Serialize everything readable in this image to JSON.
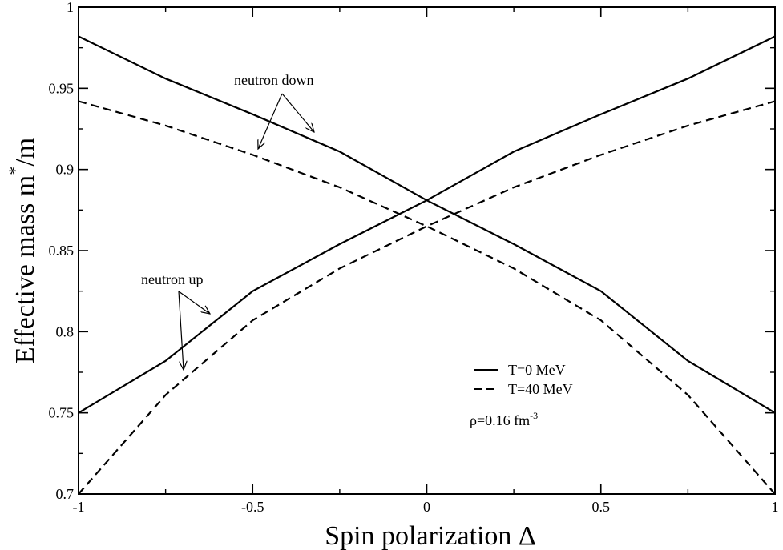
{
  "chart_data": {
    "type": "line",
    "xlabel": "Spin polarization Δ",
    "ylabel_main": "Effective mass m",
    "ylabel_sup": "*",
    "ylabel_tail": "/m",
    "xlim": [
      -1,
      1
    ],
    "ylim": [
      0.7,
      1.0
    ],
    "xticks": [
      "-1",
      "-0.5",
      "0",
      "0.5",
      "1"
    ],
    "xtick_values": [
      -1,
      -0.5,
      0,
      0.5,
      1
    ],
    "yticks": [
      "0.7",
      "0.75",
      "0.8",
      "0.85",
      "0.9",
      "0.95",
      "1"
    ],
    "ytick_values": [
      0.7,
      0.75,
      0.8,
      0.85,
      0.9,
      0.95,
      1.0
    ],
    "x": [
      -1,
      -0.75,
      -0.5,
      -0.25,
      0,
      0.25,
      0.5,
      0.75,
      1
    ],
    "series": [
      {
        "name": "T=0 MeV",
        "style": "solid",
        "branch": "neutron down",
        "values": [
          0.982,
          0.956,
          0.934,
          0.911,
          0.881,
          0.854,
          0.825,
          0.782,
          0.75
        ]
      },
      {
        "name": "T=0 MeV",
        "style": "solid",
        "branch": "neutron up",
        "values": [
          0.75,
          0.782,
          0.825,
          0.854,
          0.881,
          0.911,
          0.934,
          0.956,
          0.982
        ]
      },
      {
        "name": "T=40 MeV",
        "style": "dashed",
        "branch": "neutron down",
        "values": [
          0.942,
          0.927,
          0.909,
          0.889,
          0.865,
          0.839,
          0.807,
          0.761,
          0.7
        ]
      },
      {
        "name": "T=40 MeV",
        "style": "dashed",
        "branch": "neutron up",
        "values": [
          0.7,
          0.761,
          0.807,
          0.839,
          0.865,
          0.889,
          0.909,
          0.927,
          0.942
        ]
      }
    ],
    "legend": {
      "entries": [
        {
          "label": "T=0 MeV",
          "style": "solid"
        },
        {
          "label": "T=40 MeV",
          "style": "dashed"
        }
      ],
      "note_main": "ρ=0.16 fm",
      "note_sup": "-3",
      "placement": "lower-right"
    },
    "annotations": [
      {
        "text": "neutron down"
      },
      {
        "text": "neutron up"
      }
    ],
    "grid": false,
    "line_color": "#000000"
  }
}
